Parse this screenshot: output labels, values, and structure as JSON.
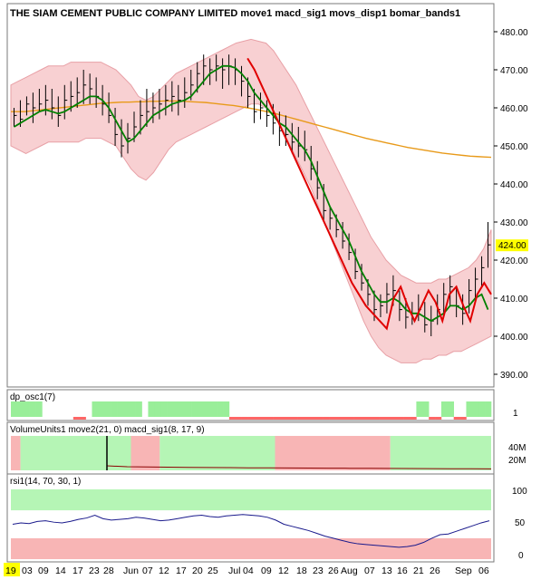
{
  "colors": {
    "band_fill": "#f8d0d2",
    "band_edge": "#e8a0a6",
    "price_bar": "#000000",
    "move1": "#008000",
    "movs": "#e89a1a",
    "macd_sig": "#e00000",
    "highlight": "#ffff00",
    "osc_green": "#99ee99",
    "osc_red": "#ff6666",
    "vol_green": "#b5f5b5",
    "vol_red": "#f8b5b5",
    "rsi_line": "#1a1a8c",
    "rsi_band_green": "#b5f5b5",
    "rsi_band_red": "#f8b5b5"
  },
  "main_title": "THE SIAM CEMENT PUBLIC COMPANY LIMITED move1 macd_sig1 movs_disp1 bomar_bands1",
  "price_ticks": [
    "480.00",
    "470.00",
    "460.00",
    "450.00",
    "440.00",
    "430.00",
    "420.00",
    "410.00",
    "400.00",
    "390.00"
  ],
  "price_tick_values": [
    480,
    470,
    460,
    450,
    440,
    430,
    420,
    410,
    400,
    390
  ],
  "last_price_label": "424.00",
  "osc_title": "dp_osc1(7)",
  "osc_tick": "1",
  "vol_title": "VolumeUnits1 move2(21, 0) macd_sig1(8, 17, 9)",
  "vol_ticks": [
    "40M",
    "20M"
  ],
  "rsi_title": "rsi1(14, 70, 30, 1)",
  "rsi_ticks": [
    "100",
    "50",
    "0"
  ],
  "date_axis": {
    "labels": [
      "19",
      "03",
      "09",
      "14",
      "17",
      "23",
      "28",
      "Jun",
      "07",
      "12",
      "17",
      "20",
      "25",
      "Jul",
      "04",
      "09",
      "12",
      "18",
      "23",
      "26",
      "Aug",
      "07",
      "13",
      "16",
      "21",
      "26",
      "Sep",
      "06"
    ],
    "highlighted_index": 0
  },
  "chart_data": {
    "type": "line",
    "title": "THE SIAM CEMENT PUBLIC COMPANY LIMITED",
    "y_axis_range": [
      390,
      480
    ],
    "x_axis": "trading days (mid May to early Sep)",
    "price_bars": [
      {
        "high": 460,
        "low": 455,
        "close": 458
      },
      {
        "high": 462,
        "low": 455,
        "close": 457
      },
      {
        "high": 463,
        "low": 458,
        "close": 461
      },
      {
        "high": 464,
        "low": 456,
        "close": 460
      },
      {
        "high": 465,
        "low": 459,
        "close": 461
      },
      {
        "high": 466,
        "low": 458,
        "close": 462
      },
      {
        "high": 465,
        "low": 457,
        "close": 460
      },
      {
        "high": 463,
        "low": 455,
        "close": 458
      },
      {
        "high": 466,
        "low": 457,
        "close": 462
      },
      {
        "high": 467,
        "low": 459,
        "close": 463
      },
      {
        "high": 468,
        "low": 460,
        "close": 464
      },
      {
        "high": 470,
        "low": 461,
        "close": 466
      },
      {
        "high": 469,
        "low": 461,
        "close": 465
      },
      {
        "high": 468,
        "low": 460,
        "close": 463
      },
      {
        "high": 466,
        "low": 458,
        "close": 461
      },
      {
        "high": 464,
        "low": 456,
        "close": 458
      },
      {
        "high": 460,
        "low": 450,
        "close": 453
      },
      {
        "high": 457,
        "low": 447,
        "close": 450
      },
      {
        "high": 456,
        "low": 448,
        "close": 452
      },
      {
        "high": 459,
        "low": 451,
        "close": 455
      },
      {
        "high": 462,
        "low": 453,
        "close": 458
      },
      {
        "high": 465,
        "low": 455,
        "close": 459
      },
      {
        "high": 464,
        "low": 456,
        "close": 460
      },
      {
        "high": 465,
        "low": 457,
        "close": 461
      },
      {
        "high": 466,
        "low": 458,
        "close": 462
      },
      {
        "high": 467,
        "low": 459,
        "close": 463
      },
      {
        "high": 466,
        "low": 458,
        "close": 462
      },
      {
        "high": 468,
        "low": 460,
        "close": 464
      },
      {
        "high": 470,
        "low": 462,
        "close": 466
      },
      {
        "high": 472,
        "low": 464,
        "close": 469
      },
      {
        "high": 474,
        "low": 466,
        "close": 471
      },
      {
        "high": 473,
        "low": 466,
        "close": 470
      },
      {
        "high": 474,
        "low": 467,
        "close": 471
      },
      {
        "high": 473,
        "low": 465,
        "close": 470
      },
      {
        "high": 474,
        "low": 466,
        "close": 471
      },
      {
        "high": 473,
        "low": 466,
        "close": 470
      },
      {
        "high": 471,
        "low": 463,
        "close": 467
      },
      {
        "high": 468,
        "low": 460,
        "close": 463
      },
      {
        "high": 465,
        "low": 456,
        "close": 459
      },
      {
        "high": 464,
        "low": 457,
        "close": 460
      },
      {
        "high": 462,
        "low": 455,
        "close": 458
      },
      {
        "high": 461,
        "low": 453,
        "close": 456
      },
      {
        "high": 459,
        "low": 450,
        "close": 454
      },
      {
        "high": 458,
        "low": 450,
        "close": 453
      },
      {
        "high": 456,
        "low": 448,
        "close": 451
      },
      {
        "high": 455,
        "low": 447,
        "close": 450
      },
      {
        "high": 454,
        "low": 446,
        "close": 449
      },
      {
        "high": 450,
        "low": 441,
        "close": 444
      },
      {
        "high": 446,
        "low": 436,
        "close": 439
      },
      {
        "high": 440,
        "low": 430,
        "close": 433
      },
      {
        "high": 434,
        "low": 428,
        "close": 431
      },
      {
        "high": 432,
        "low": 426,
        "close": 428
      },
      {
        "high": 430,
        "low": 423,
        "close": 425
      },
      {
        "high": 427,
        "low": 420,
        "close": 422
      },
      {
        "high": 423,
        "low": 415,
        "close": 417
      },
      {
        "high": 419,
        "low": 412,
        "close": 414
      },
      {
        "high": 415,
        "low": 408,
        "close": 411
      },
      {
        "high": 412,
        "low": 404,
        "close": 407
      },
      {
        "high": 411,
        "low": 405,
        "close": 408
      },
      {
        "high": 414,
        "low": 406,
        "close": 411
      },
      {
        "high": 416,
        "low": 408,
        "close": 412
      },
      {
        "high": 412,
        "low": 404,
        "close": 407
      },
      {
        "high": 410,
        "low": 402,
        "close": 405
      },
      {
        "high": 409,
        "low": 403,
        "close": 406
      },
      {
        "high": 411,
        "low": 404,
        "close": 407
      },
      {
        "high": 409,
        "low": 401,
        "close": 403
      },
      {
        "high": 408,
        "low": 400,
        "close": 404
      },
      {
        "high": 411,
        "low": 403,
        "close": 407
      },
      {
        "high": 414,
        "low": 406,
        "close": 411
      },
      {
        "high": 416,
        "low": 408,
        "close": 413
      },
      {
        "high": 413,
        "low": 405,
        "close": 408
      },
      {
        "high": 411,
        "low": 403,
        "close": 406
      },
      {
        "high": 415,
        "low": 406,
        "close": 412
      },
      {
        "high": 418,
        "low": 410,
        "close": 415
      },
      {
        "high": 421,
        "low": 413,
        "close": 418
      },
      {
        "high": 430,
        "low": 418,
        "close": 424
      }
    ],
    "series": [
      {
        "type": "line",
        "values": [
          455,
          456,
          457,
          458,
          459,
          459.5,
          459,
          458.5,
          459,
          460,
          461,
          462,
          463,
          463,
          462,
          460,
          457,
          454,
          451,
          452,
          454,
          456,
          458,
          459,
          460,
          461,
          461.5,
          462,
          463,
          465,
          467,
          469,
          470,
          471,
          471,
          470.5,
          469,
          467,
          464,
          462,
          460,
          458,
          456,
          455,
          453,
          451,
          449,
          446,
          442,
          438,
          434,
          431,
          428,
          425,
          421,
          417,
          414,
          411,
          409,
          409,
          410,
          409,
          407,
          406,
          406,
          405,
          404,
          405,
          406,
          408,
          408,
          407,
          408,
          410,
          411,
          407
        ]
      },
      {
        "type": "line",
        "values": [
          459,
          459,
          459,
          459.2,
          459.4,
          459.6,
          459.8,
          460,
          460.2,
          460.4,
          460.6,
          460.8,
          461,
          461.2,
          461.3,
          461.4,
          461.5,
          461.5,
          461.6,
          461.6,
          461.7,
          461.7,
          461.8,
          461.8,
          461.8,
          461.7,
          461.6,
          461.5,
          461.4,
          461.2,
          461,
          460.8,
          460.6,
          460.3,
          460,
          459.7,
          459.3,
          458.9,
          458.5,
          458,
          457.5,
          457,
          456.5,
          456,
          455.5,
          455,
          454.5,
          454,
          453.5,
          453,
          452.5,
          452,
          451.6,
          451.2,
          450.8,
          450.4,
          450,
          449.6,
          449.3,
          449,
          448.7,
          448.4,
          448.1,
          447.9,
          447.7,
          447.5,
          447.3,
          447.2,
          447.1,
          447
        ]
      },
      {
        "type": "line",
        "values": [
          null,
          null,
          null,
          null,
          null,
          null,
          null,
          null,
          null,
          null,
          null,
          null,
          null,
          null,
          null,
          null,
          null,
          null,
          null,
          null,
          null,
          null,
          null,
          null,
          null,
          null,
          null,
          null,
          null,
          null,
          null,
          null,
          null,
          null,
          473,
          470,
          466,
          462,
          458,
          454,
          450,
          446,
          442,
          438,
          434,
          430,
          426,
          422,
          418,
          414,
          411,
          408,
          406,
          404,
          402,
          410,
          413,
          408,
          404,
          408,
          412,
          409,
          404,
          411,
          413,
          408,
          404,
          411,
          414,
          411
        ]
      },
      {
        "type": "area",
        "upper": [
          466,
          467,
          468,
          469,
          470,
          471,
          471,
          471,
          472,
          472,
          472,
          472,
          472,
          471,
          470,
          468,
          466,
          463,
          462,
          463,
          465,
          467,
          469,
          470,
          471,
          472,
          473,
          474,
          475,
          476,
          477,
          477.5,
          478,
          477.5,
          477,
          475,
          472,
          469,
          466,
          462,
          458,
          454,
          450,
          446,
          442,
          438,
          434,
          430,
          426,
          423,
          420,
          418,
          416,
          415,
          414,
          414,
          414,
          415,
          415,
          416,
          417,
          418,
          420,
          423,
          428
        ],
        "lower": [
          450,
          449,
          448,
          449,
          450,
          451,
          451,
          451,
          451,
          451,
          452,
          452,
          452,
          451,
          450,
          447,
          444,
          442,
          441,
          443,
          446,
          449,
          451,
          452,
          453,
          454,
          455,
          456,
          457,
          458,
          459,
          460,
          461,
          461,
          460,
          458,
          455,
          451,
          447,
          443,
          439,
          434,
          429,
          424,
          419,
          414,
          409,
          404,
          400,
          397,
          395,
          394,
          393,
          393,
          393,
          394,
          394,
          395,
          395,
          396,
          396,
          397,
          398,
          399,
          400
        ]
      }
    ]
  },
  "osc_data": {
    "values": [
      1,
      1,
      1,
      1,
      1,
      0,
      0,
      0,
      0,
      0,
      -1,
      -1,
      0,
      1,
      1,
      1,
      1,
      1,
      1,
      1,
      1,
      0,
      1,
      1,
      1,
      1,
      1,
      1,
      1,
      1,
      1,
      1,
      1,
      1,
      1,
      -1,
      -1,
      -1,
      -1,
      -1,
      -1,
      -1,
      -1,
      -1,
      -1,
      -1,
      -1,
      -1,
      -1,
      -1,
      -1,
      -1,
      -1,
      -1,
      -1,
      -1,
      -1,
      -1,
      -1,
      -1,
      -1,
      -1,
      -1,
      -1,
      -1,
      1,
      1,
      -1,
      -1,
      1,
      1,
      -1,
      -1,
      1,
      1,
      1,
      1
    ]
  },
  "volume_data": {
    "regimes": [
      {
        "state": "red",
        "span": [
          0,
          2
        ]
      },
      {
        "state": "green",
        "span": [
          2,
          25
        ]
      },
      {
        "state": "red",
        "span": [
          25,
          31
        ]
      },
      {
        "state": "green",
        "span": [
          31,
          55
        ]
      },
      {
        "state": "red",
        "span": [
          55,
          79
        ]
      },
      {
        "state": "green",
        "span": [
          79,
          100
        ]
      }
    ],
    "volume_line": [
      5,
      4,
      3.8,
      3.5,
      3.3,
      3.1,
      3,
      2.8,
      2.7,
      2.6,
      2.5,
      2.4,
      2.3,
      2.2,
      2.1,
      2,
      1.9,
      1.8,
      1.7,
      1.6
    ],
    "unit_ticks": [
      40,
      20
    ]
  },
  "rsi_data": {
    "values": [
      50,
      52,
      51,
      54,
      55,
      53,
      52,
      54,
      57,
      59,
      63,
      58,
      56,
      57,
      58,
      60,
      59,
      57,
      55,
      56,
      58,
      60,
      62,
      63,
      61,
      60,
      62,
      63,
      64,
      63,
      62,
      60,
      56,
      50,
      47,
      44,
      41,
      37,
      33,
      30,
      27,
      24,
      22,
      21,
      20,
      19,
      18,
      17,
      18,
      20,
      24,
      30,
      35,
      36,
      40,
      44,
      48,
      52,
      55
    ],
    "range": [
      0,
      100
    ],
    "overbought": 70,
    "oversold": 30
  }
}
